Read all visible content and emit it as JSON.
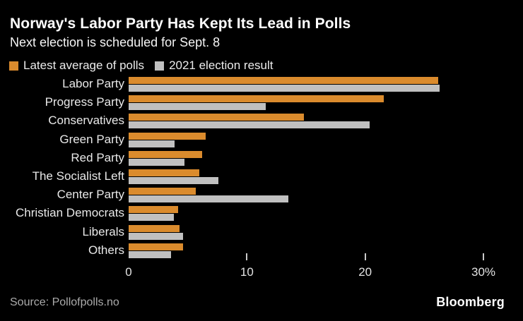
{
  "header": {
    "title": "Norway's Labor Party Has Kept Its Lead in Polls",
    "subtitle": "Next election is scheduled for Sept. 8"
  },
  "legend": [
    {
      "label": "Latest average of polls",
      "color": "#DA8B2D"
    },
    {
      "label": "2021 election result",
      "color": "#C0C0C0"
    }
  ],
  "chart_data": {
    "type": "bar",
    "orientation": "horizontal",
    "title": "Norway's Labor Party Has Kept Its Lead in Polls",
    "subtitle": "Next election is scheduled for Sept. 8",
    "categories": [
      "Labor Party",
      "Progress Party",
      "Conservatives",
      "Green Party",
      "Red Party",
      "The Socialist Left",
      "Center Party",
      "Christian Democrats",
      "Liberals",
      "Others"
    ],
    "series": [
      {
        "name": "Latest average of polls",
        "color": "#DA8B2D",
        "values": [
          26.2,
          21.6,
          14.8,
          6.5,
          6.2,
          6.0,
          5.7,
          4.2,
          4.3,
          4.6
        ]
      },
      {
        "name": "2021 election result",
        "color": "#C0C0C0",
        "values": [
          26.3,
          11.6,
          20.4,
          3.9,
          4.7,
          7.6,
          13.5,
          3.8,
          4.6,
          3.6
        ]
      }
    ],
    "xlim": [
      0,
      30
    ],
    "x_ticks": [
      {
        "value": 0,
        "label": "0",
        "mark": false
      },
      {
        "value": 10,
        "label": "10",
        "mark": true
      },
      {
        "value": 20,
        "label": "20",
        "mark": true
      },
      {
        "value": 30,
        "label": "30%",
        "mark": true
      }
    ],
    "grid": false,
    "legend_position": "top",
    "unit": "%"
  },
  "footer": {
    "source": "Source: Pollofpolls.no",
    "brand": "Bloomberg"
  },
  "colors": {
    "background": "#000000",
    "bar_poll": "#DA8B2D",
    "bar_result": "#C0C0C0",
    "title_text": "#FFFFFF",
    "muted_text": "#ABABAB"
  }
}
